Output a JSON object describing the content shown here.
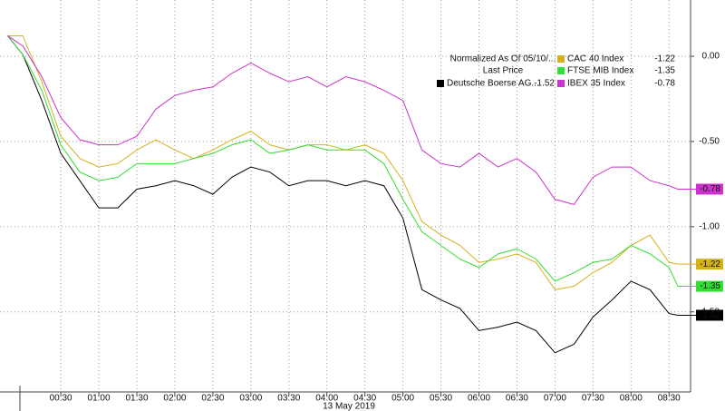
{
  "chart_data": {
    "type": "line",
    "legend_title": "Normalized As Of 05/10/...",
    "legend_subtitle": "Last Price",
    "x_label": "13 May 2019",
    "x": [
      -12,
      0,
      15,
      30,
      45,
      60,
      75,
      90,
      105,
      120,
      135,
      150,
      165,
      180,
      195,
      210,
      225,
      240,
      255,
      270,
      285,
      300,
      315,
      330,
      345,
      360,
      375,
      390,
      405,
      420,
      435,
      450,
      465,
      480,
      495,
      510,
      517
    ],
    "xlim": [
      -18,
      527
    ],
    "xticks": [
      {
        "value": 30,
        "label": "00:30"
      },
      {
        "value": 60,
        "label": "01:00"
      },
      {
        "value": 90,
        "label": "01:30"
      },
      {
        "value": 120,
        "label": "02:00"
      },
      {
        "value": 150,
        "label": "02:30"
      },
      {
        "value": 180,
        "label": "03:00"
      },
      {
        "value": 210,
        "label": "03:30"
      },
      {
        "value": 240,
        "label": "04:00"
      },
      {
        "value": 270,
        "label": "04:30"
      },
      {
        "value": 300,
        "label": "05:00"
      },
      {
        "value": 330,
        "label": "05:30"
      },
      {
        "value": 360,
        "label": "06:00"
      },
      {
        "value": 390,
        "label": "06:30"
      },
      {
        "value": 420,
        "label": "07:00"
      },
      {
        "value": 450,
        "label": "07:30"
      },
      {
        "value": 480,
        "label": "08:00"
      },
      {
        "value": 510,
        "label": "08:30"
      }
    ],
    "ylim": [
      -1.97,
      0.33
    ],
    "yticks": [
      {
        "value": 0,
        "label": "0.00"
      },
      {
        "value": -0.5,
        "label": "-0.50"
      },
      {
        "value": -1,
        "label": "-1.00"
      },
      {
        "value": -1.5,
        "label": "-1.50"
      }
    ],
    "grid": true,
    "series": [
      {
        "name": "Deutsche Boerse AG...",
        "color": "#000000",
        "values": [
          0.12,
          0.01,
          -0.26,
          -0.57,
          -0.73,
          -0.89,
          -0.89,
          -0.78,
          -0.76,
          -0.73,
          -0.76,
          -0.81,
          -0.71,
          -0.65,
          -0.68,
          -0.76,
          -0.73,
          -0.73,
          -0.76,
          -0.73,
          -0.76,
          -0.95,
          -1.37,
          -1.43,
          -1.48,
          -1.61,
          -1.59,
          -1.56,
          -1.61,
          -1.74,
          -1.69,
          -1.53,
          -1.43,
          -1.32,
          -1.37,
          -1.51,
          -1.52
        ]
      },
      {
        "name": "CAC 40 Index",
        "color": "#d4b21c",
        "values": [
          0.12,
          0.12,
          -0.15,
          -0.47,
          -0.6,
          -0.65,
          -0.63,
          -0.55,
          -0.49,
          -0.55,
          -0.6,
          -0.55,
          -0.49,
          -0.44,
          -0.52,
          -0.55,
          -0.52,
          -0.52,
          -0.55,
          -0.52,
          -0.57,
          -0.73,
          -0.97,
          -1.05,
          -1.11,
          -1.21,
          -1.19,
          -1.16,
          -1.21,
          -1.37,
          -1.35,
          -1.27,
          -1.21,
          -1.11,
          -1.05,
          -1.21,
          -1.22
        ]
      },
      {
        "name": "FTSE MIB Index",
        "color": "#33dd33",
        "values": [
          0.12,
          0.01,
          -0.2,
          -0.52,
          -0.68,
          -0.73,
          -0.71,
          -0.63,
          -0.63,
          -0.63,
          -0.6,
          -0.57,
          -0.52,
          -0.49,
          -0.57,
          -0.55,
          -0.52,
          -0.55,
          -0.55,
          -0.55,
          -0.63,
          -0.84,
          -1.03,
          -1.11,
          -1.19,
          -1.24,
          -1.16,
          -1.13,
          -1.19,
          -1.32,
          -1.27,
          -1.21,
          -1.19,
          -1.11,
          -1.16,
          -1.24,
          -1.35
        ]
      },
      {
        "name": "IBEX 35 Index",
        "color": "#cc33cc",
        "values": [
          0.12,
          0.06,
          -0.12,
          -0.36,
          -0.49,
          -0.52,
          -0.52,
          -0.47,
          -0.31,
          -0.23,
          -0.2,
          -0.18,
          -0.1,
          -0.04,
          -0.1,
          -0.15,
          -0.12,
          -0.18,
          -0.12,
          -0.15,
          -0.2,
          -0.26,
          -0.55,
          -0.63,
          -0.65,
          -0.57,
          -0.65,
          -0.6,
          -0.68,
          -0.84,
          -0.87,
          -0.71,
          -0.65,
          -0.65,
          -0.73,
          -0.76,
          -0.78
        ]
      }
    ]
  }
}
